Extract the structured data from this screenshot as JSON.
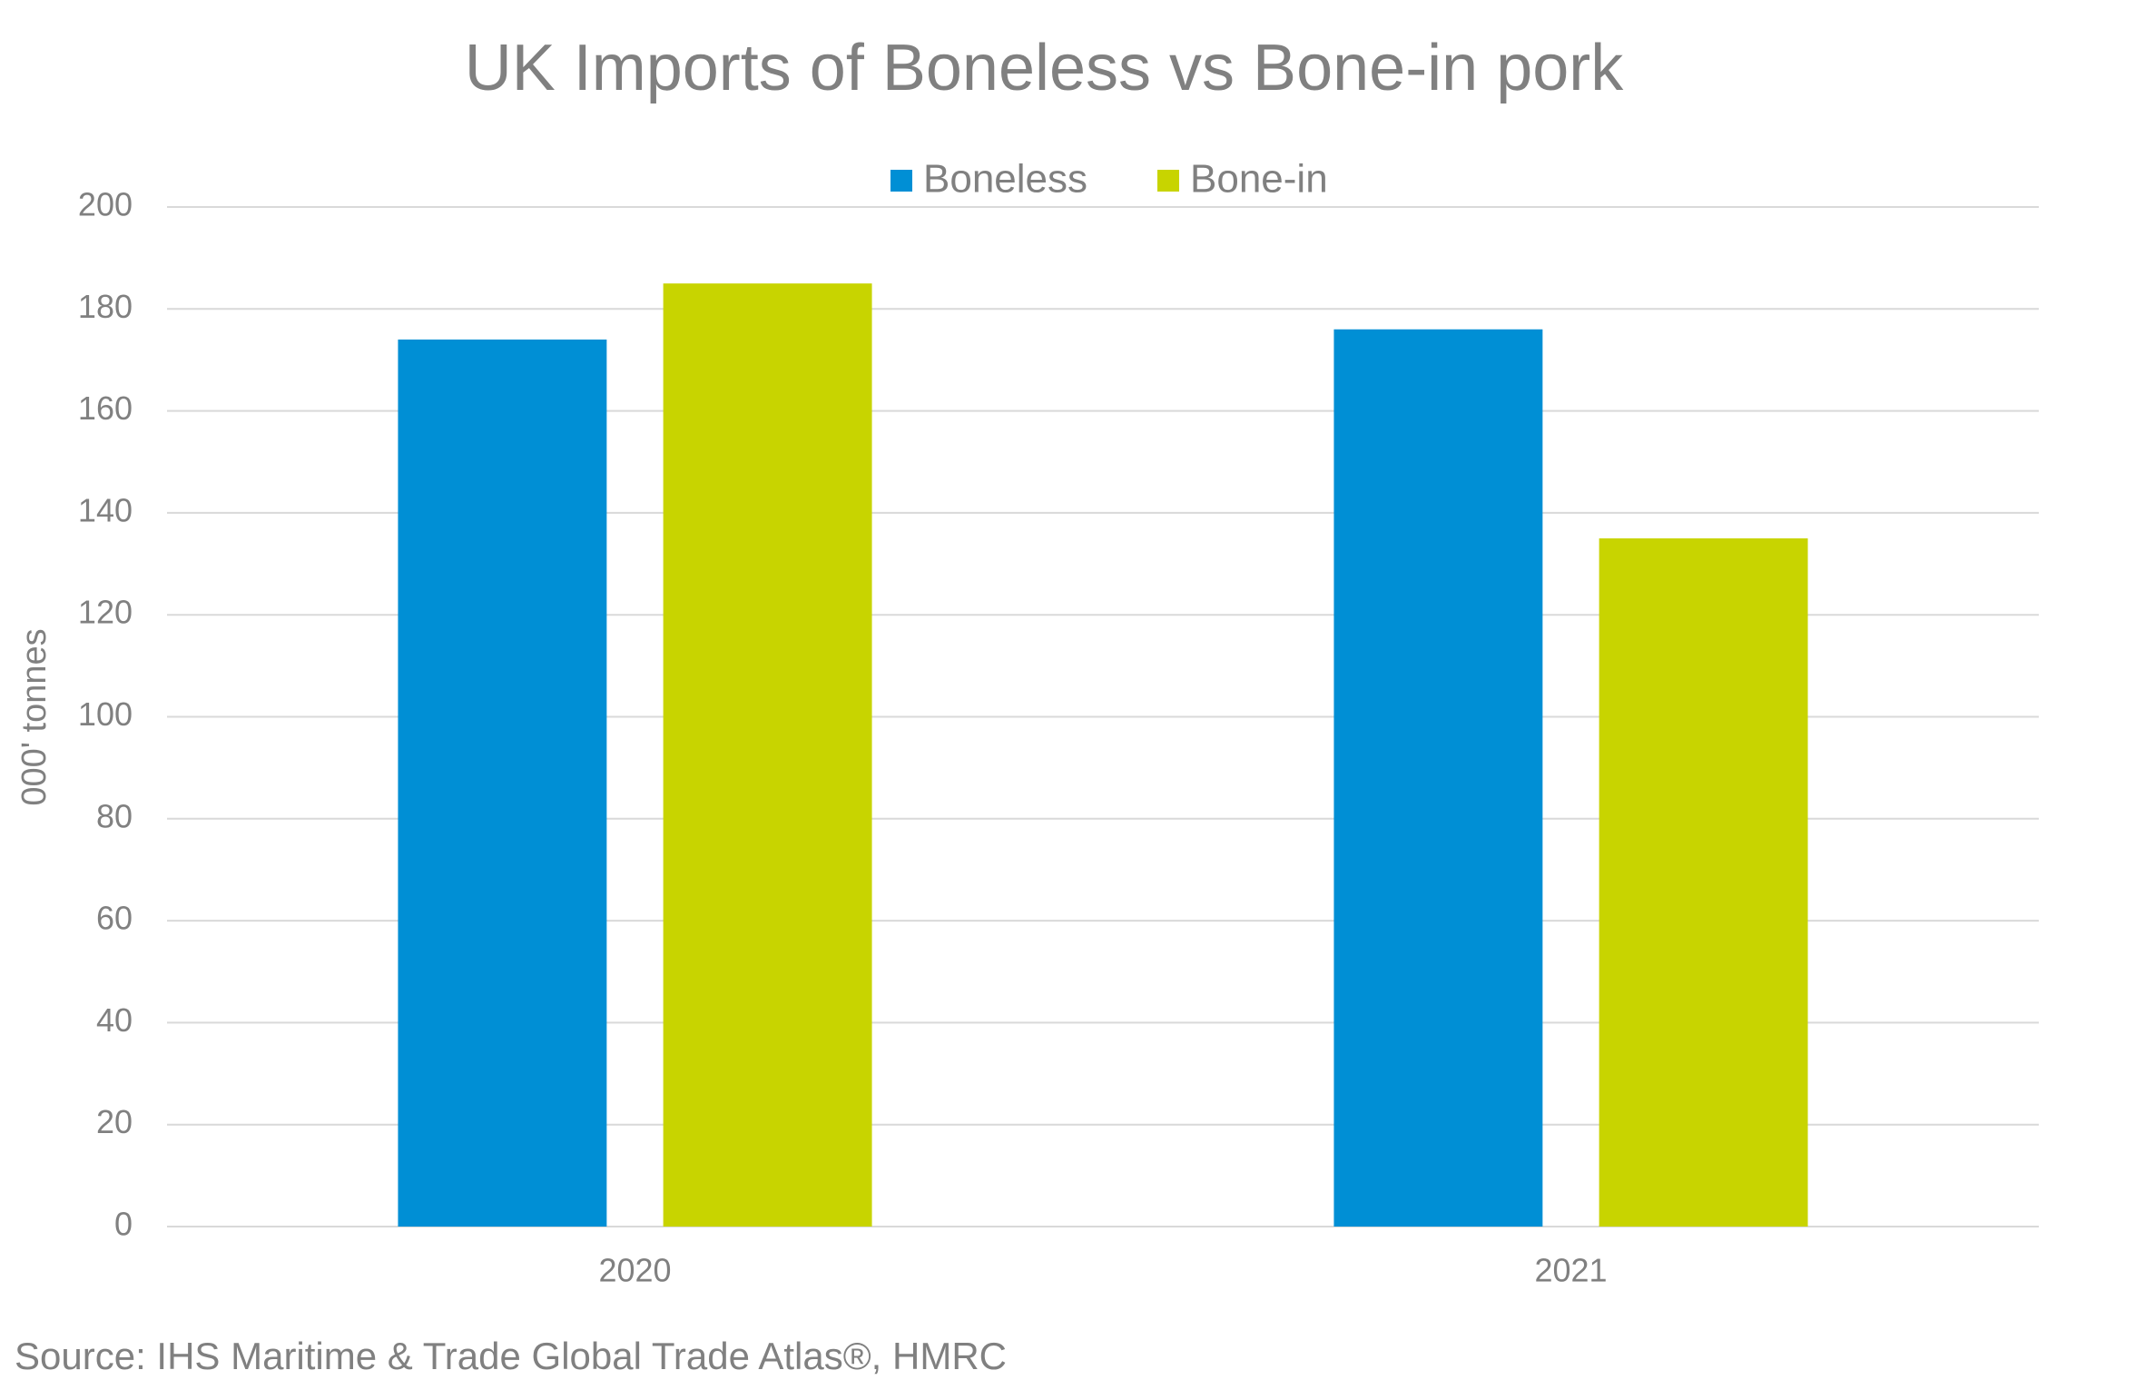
{
  "chart_data": {
    "type": "bar",
    "title": "UK Imports of Boneless vs Bone-in pork",
    "y_label": "000' tonnes",
    "source": "Source: IHS Maritime & Trade Global Trade Atlas®, HMRC",
    "categories": [
      "2020",
      "2021"
    ],
    "series": [
      {
        "name": "Boneless",
        "color": "#008fd5",
        "values": [
          174,
          176
        ]
      },
      {
        "name": "Bone-in",
        "color": "#c8d400",
        "values": [
          185,
          135
        ]
      }
    ],
    "ylim": [
      0,
      200
    ],
    "yticks": [
      0,
      20,
      40,
      60,
      80,
      100,
      120,
      140,
      160,
      180,
      200
    ],
    "grid": true,
    "legend": "top"
  }
}
